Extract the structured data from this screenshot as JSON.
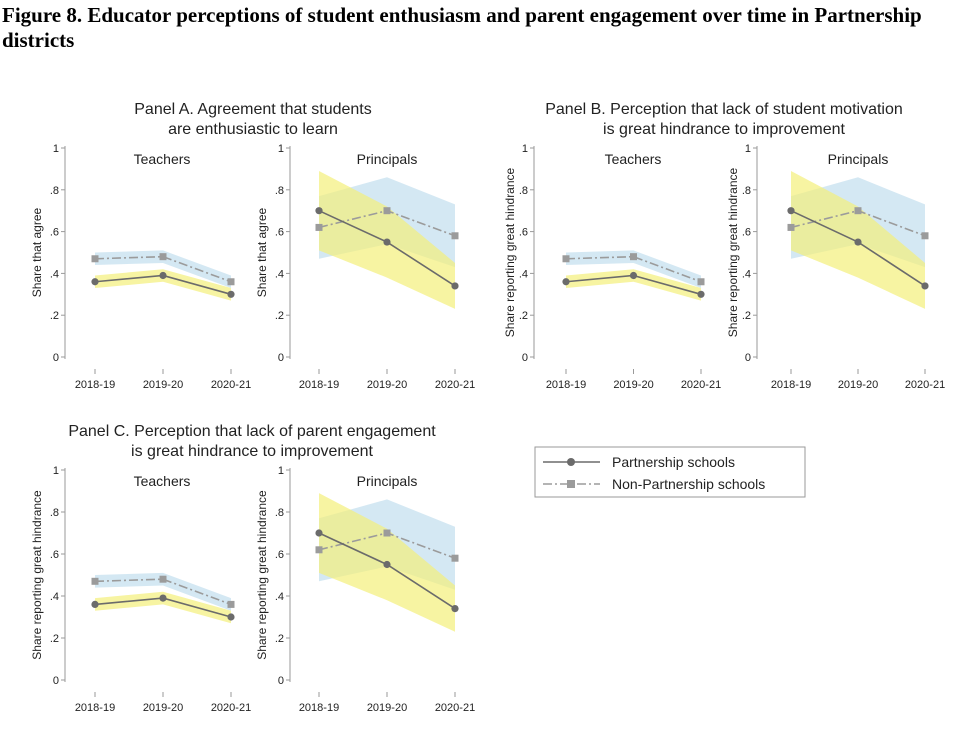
{
  "figure": {
    "title": "Figure 8. Educator perceptions of student enthusiasm and parent engagement over time in Partnership districts"
  },
  "legend": {
    "partnership_label": "Partnership schools",
    "non_partnership_label": "Non-Partnership schools"
  },
  "colors": {
    "partnership_line": "#6b6b6b",
    "partnership_band": "#f3f07a",
    "non_partnership_line": "#9b9b9b",
    "non_partnership_band": "#cfe6f2",
    "overlap_band": "#d5e8b6",
    "axis": "#9a9a9a"
  },
  "chart_data": [
    {
      "type": "line",
      "panel": "A",
      "title": "Panel A. Agreement that students are enthusiastic to learn",
      "title_lines": [
        "Panel A. Agreement that students",
        "are enthusiastic to learn"
      ],
      "subplots": [
        {
          "subtitle": "Teachers",
          "ylabel": "Share that agree",
          "x": [
            "2018-19",
            "2019-20",
            "2020-21"
          ],
          "ylim": [
            0,
            1
          ],
          "yticks": [
            "0",
            ".2",
            ".4",
            ".6",
            ".8",
            "1"
          ],
          "series": [
            {
              "name": "Partnership schools",
              "values": [
                0.36,
                0.39,
                0.3
              ],
              "ci_low": [
                0.33,
                0.36,
                0.27
              ],
              "ci_high": [
                0.39,
                0.42,
                0.33
              ]
            },
            {
              "name": "Non-Partnership schools",
              "values": [
                0.47,
                0.48,
                0.36
              ],
              "ci_low": [
                0.44,
                0.45,
                0.33
              ],
              "ci_high": [
                0.5,
                0.51,
                0.39
              ]
            }
          ]
        },
        {
          "subtitle": "Principals",
          "ylabel": "Share that agree",
          "x": [
            "2018-19",
            "2019-20",
            "2020-21"
          ],
          "ylim": [
            0,
            1
          ],
          "yticks": [
            "0",
            ".2",
            ".4",
            ".6",
            ".8",
            "1"
          ],
          "series": [
            {
              "name": "Partnership schools",
              "values": [
                0.7,
                0.55,
                0.34
              ],
              "ci_low": [
                0.51,
                0.38,
                0.23
              ],
              "ci_high": [
                0.89,
                0.72,
                0.45
              ]
            },
            {
              "name": "Non-Partnership schools",
              "values": [
                0.62,
                0.7,
                0.58
              ],
              "ci_low": [
                0.47,
                0.54,
                0.43
              ],
              "ci_high": [
                0.77,
                0.86,
                0.73
              ]
            }
          ]
        }
      ]
    },
    {
      "type": "line",
      "panel": "B",
      "title": "Panel B. Perception that lack of student motivation is great hindrance to improvement",
      "title_lines": [
        "Panel B. Perception that lack of student motivation",
        "is great hindrance to improvement"
      ],
      "subplots": [
        {
          "subtitle": "Teachers",
          "ylabel": "Share reporting great hindrance",
          "x": [
            "2018-19",
            "2019-20",
            "2020-21"
          ],
          "ylim": [
            0,
            1
          ],
          "yticks": [
            "0",
            ".2",
            ".4",
            ".6",
            ".8",
            "1"
          ],
          "series": [
            {
              "name": "Partnership schools",
              "values": [
                0.36,
                0.39,
                0.3
              ],
              "ci_low": [
                0.33,
                0.36,
                0.27
              ],
              "ci_high": [
                0.39,
                0.42,
                0.33
              ]
            },
            {
              "name": "Non-Partnership schools",
              "values": [
                0.47,
                0.48,
                0.36
              ],
              "ci_low": [
                0.44,
                0.45,
                0.33
              ],
              "ci_high": [
                0.5,
                0.51,
                0.39
              ]
            }
          ]
        },
        {
          "subtitle": "Principals",
          "ylabel": "Share reporting great hindrance",
          "x": [
            "2018-19",
            "2019-20",
            "2020-21"
          ],
          "ylim": [
            0,
            1
          ],
          "yticks": [
            "0",
            ".2",
            ".4",
            ".6",
            ".8",
            "1"
          ],
          "series": [
            {
              "name": "Partnership schools",
              "values": [
                0.7,
                0.55,
                0.34
              ],
              "ci_low": [
                0.51,
                0.38,
                0.23
              ],
              "ci_high": [
                0.89,
                0.72,
                0.45
              ]
            },
            {
              "name": "Non-Partnership schools",
              "values": [
                0.62,
                0.7,
                0.58
              ],
              "ci_low": [
                0.47,
                0.54,
                0.43
              ],
              "ci_high": [
                0.77,
                0.86,
                0.73
              ]
            }
          ]
        }
      ]
    },
    {
      "type": "line",
      "panel": "C",
      "title": "Panel C. Perception that lack of parent engagement is great hindrance to improvement",
      "title_lines": [
        "Panel C. Perception that lack of parent engagement",
        "is great hindrance to improvement"
      ],
      "subplots": [
        {
          "subtitle": "Teachers",
          "ylabel": "Share reporting great hindrance",
          "x": [
            "2018-19",
            "2019-20",
            "2020-21"
          ],
          "ylim": [
            0,
            1
          ],
          "yticks": [
            "0",
            ".2",
            ".4",
            ".6",
            ".8",
            "1"
          ],
          "series": [
            {
              "name": "Partnership schools",
              "values": [
                0.36,
                0.39,
                0.3
              ],
              "ci_low": [
                0.33,
                0.36,
                0.27
              ],
              "ci_high": [
                0.39,
                0.42,
                0.33
              ]
            },
            {
              "name": "Non-Partnership schools",
              "values": [
                0.47,
                0.48,
                0.36
              ],
              "ci_low": [
                0.44,
                0.45,
                0.33
              ],
              "ci_high": [
                0.5,
                0.51,
                0.39
              ]
            }
          ]
        },
        {
          "subtitle": "Principals",
          "ylabel": "Share reporting great hindrance",
          "x": [
            "2018-19",
            "2019-20",
            "2020-21"
          ],
          "ylim": [
            0,
            1
          ],
          "yticks": [
            "0",
            ".2",
            ".4",
            ".6",
            ".8",
            "1"
          ],
          "series": [
            {
              "name": "Partnership schools",
              "values": [
                0.7,
                0.55,
                0.34
              ],
              "ci_low": [
                0.51,
                0.38,
                0.23
              ],
              "ci_high": [
                0.89,
                0.72,
                0.45
              ]
            },
            {
              "name": "Non-Partnership schools",
              "values": [
                0.62,
                0.7,
                0.58
              ],
              "ci_low": [
                0.47,
                0.54,
                0.43
              ],
              "ci_high": [
                0.77,
                0.86,
                0.73
              ]
            }
          ]
        }
      ]
    }
  ]
}
